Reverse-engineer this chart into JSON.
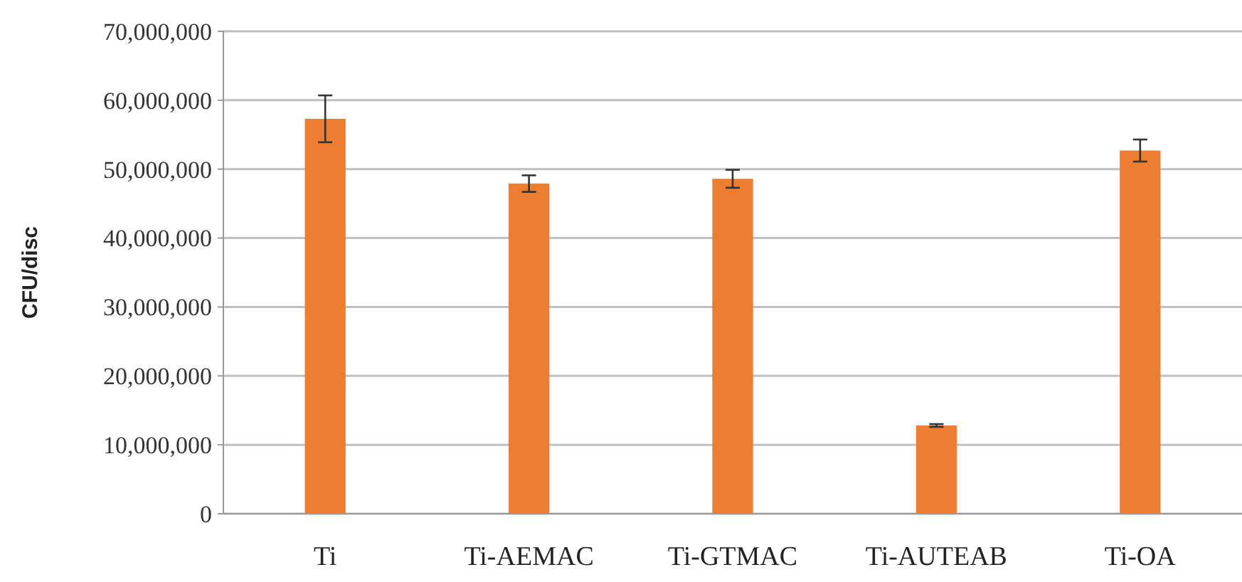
{
  "chart_data": {
    "type": "bar",
    "ylabel": "CFU/disc",
    "categories": [
      "Ti",
      "Ti-AEMAC",
      "Ti-GTMAC",
      "Ti-AUTEAB",
      "Ti-OA"
    ],
    "values": [
      57300000,
      47900000,
      48600000,
      12800000,
      52700000
    ],
    "errors": [
      3400000,
      1200000,
      1300000,
      200000,
      1600000
    ],
    "color": "#ed7d31",
    "ylim": [
      0,
      70000000
    ],
    "yticks": [
      {
        "value": 0,
        "label": "0"
      },
      {
        "value": 10000000,
        "label": "10,000,000"
      },
      {
        "value": 20000000,
        "label": "20,000,000"
      },
      {
        "value": 30000000,
        "label": "30,000,000"
      },
      {
        "value": 40000000,
        "label": "40,000,000"
      },
      {
        "value": 50000000,
        "label": "50,000,000"
      },
      {
        "value": 60000000,
        "label": "60,000,000"
      },
      {
        "value": 70000000,
        "label": "70,000,000"
      }
    ],
    "grid": "y"
  }
}
